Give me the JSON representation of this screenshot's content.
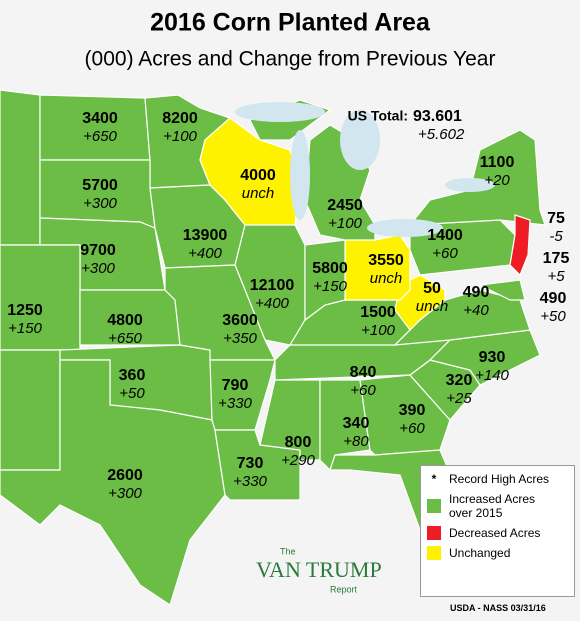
{
  "header": {
    "title": "2016 Corn Planted Area",
    "subtitle": "(000) Acres and Change from Previous Year"
  },
  "us_total": {
    "label": "US Total:",
    "value": "93.601",
    "change": "+5.602"
  },
  "states": [
    {
      "acres": "3400",
      "change": "+650"
    },
    {
      "acres": "8200",
      "change": "+100"
    },
    {
      "acres": "4000",
      "change": "unch"
    },
    {
      "acres": "5700",
      "change": "+300"
    },
    {
      "acres": "9700",
      "change": "+300"
    },
    {
      "acres": "4800",
      "change": "+650"
    },
    {
      "acres": "1250",
      "change": "+150"
    },
    {
      "acres": "360",
      "change": "+50"
    },
    {
      "acres": "2600",
      "change": "+300"
    },
    {
      "acres": "13900",
      "change": "+400"
    },
    {
      "acres": "12100",
      "change": "+400"
    },
    {
      "acres": "5800",
      "change": "+150"
    },
    {
      "acres": "3600",
      "change": "+350"
    },
    {
      "acres": "2450",
      "change": "+100"
    },
    {
      "acres": "3550",
      "change": "unch"
    },
    {
      "acres": "50",
      "change": "unch"
    },
    {
      "acres": "1400",
      "change": "+60"
    },
    {
      "acres": "1100",
      "change": "+20"
    },
    {
      "acres": "75",
      "change": "-5"
    },
    {
      "acres": "175",
      "change": "+5"
    },
    {
      "acres": "490",
      "change": "+50"
    },
    {
      "acres": "490",
      "change": "+40"
    },
    {
      "acres": "1500",
      "change": "+100"
    },
    {
      "acres": "930",
      "change": "+140"
    },
    {
      "acres": "840",
      "change": "+60"
    },
    {
      "acres": "320",
      "change": "+25"
    },
    {
      "acres": "390",
      "change": "+60"
    },
    {
      "acres": "340",
      "change": "+80"
    },
    {
      "acres": "800",
      "change": "+290"
    },
    {
      "acres": "790",
      "change": "+330"
    },
    {
      "acres": "730",
      "change": "+330"
    }
  ],
  "legend": [
    {
      "symbol": "*",
      "label": "Record High Acres"
    },
    {
      "label": "Increased Acres over 2015"
    },
    {
      "label": "Decreased Acres"
    },
    {
      "label": "Unchanged"
    }
  ],
  "logo": {
    "small": "The",
    "name": "VAN TRUMP",
    "sub": "Report"
  },
  "source": "USDA - NASS 03/31/16"
}
